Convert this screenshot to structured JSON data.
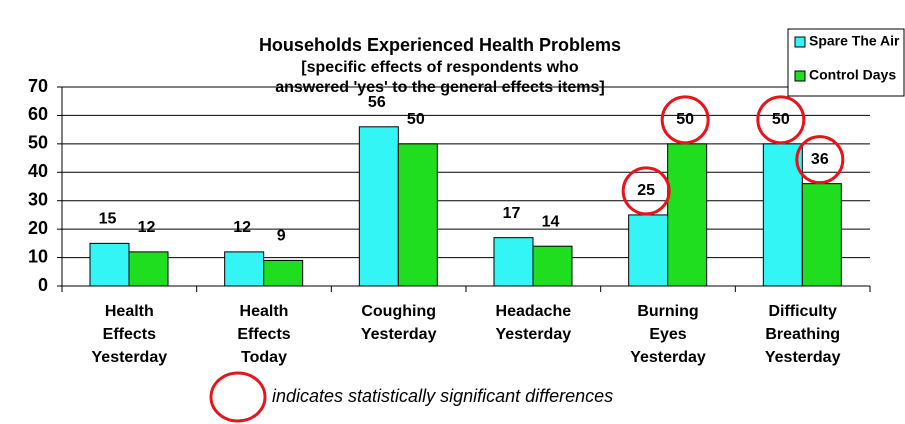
{
  "chart_data": {
    "type": "bar",
    "title": "Households Experienced Health Problems",
    "subtitle": [
      "[specific effects of respondents who",
      "answered 'yes' to the general effects items]"
    ],
    "categories": [
      "Health Effects Yesterday",
      "Health Effects Today",
      "Coughing Yesterday",
      "Headache Yesterday",
      "Burning Eyes Yesterday",
      "Difficulty Breathing Yesterday"
    ],
    "series": [
      {
        "name": "Spare The Air",
        "color": "#33f5f5",
        "values": [
          15,
          12,
          56,
          17,
          25,
          50
        ],
        "highlight": [
          4,
          5
        ]
      },
      {
        "name": "Control Days",
        "color": "#1fdd1f",
        "values": [
          12,
          9,
          50,
          14,
          50,
          36
        ],
        "highlight": [
          4,
          5
        ]
      }
    ],
    "ylim": [
      0,
      70
    ],
    "yticks": [
      0,
      10,
      20,
      30,
      40,
      50,
      60,
      70
    ],
    "grid": true,
    "legend": "top-right",
    "annotation": "indicates statistically significant differences",
    "highlight_color": "#e8141b"
  }
}
